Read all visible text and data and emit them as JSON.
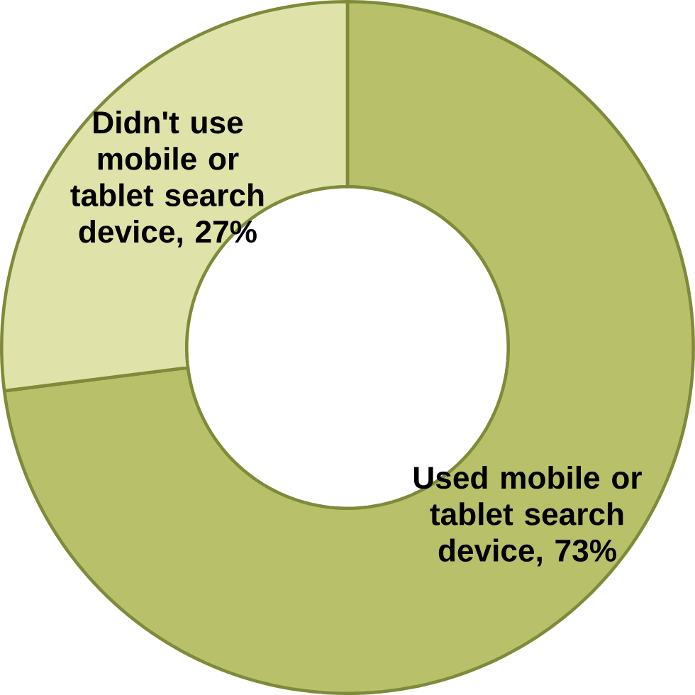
{
  "chart_data": {
    "type": "donut",
    "categories": [
      "Used mobile or tablet search device",
      "Didn't use mobile or tablet search device"
    ],
    "values": [
      73,
      27
    ],
    "colors": [
      "#b9c06a",
      "#dfe2a9"
    ],
    "value_labels": [
      ", 73%",
      ", 27%"
    ]
  }
}
